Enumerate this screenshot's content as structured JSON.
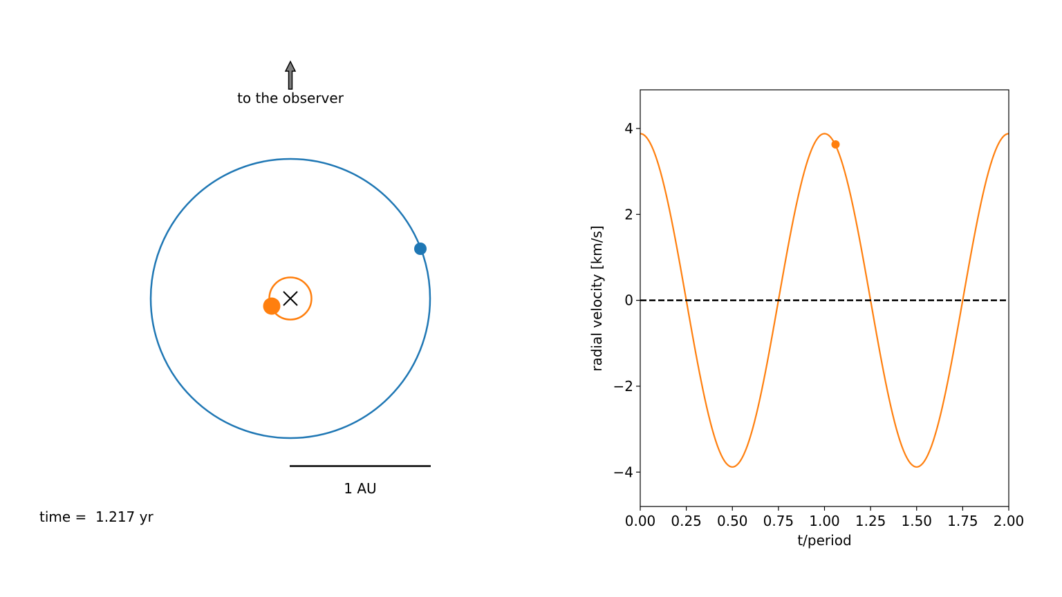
{
  "orbit_panel": {
    "observer_label": "to the observer",
    "scale_label": "1 AU",
    "scale_length_au": 1,
    "time_label": "time =  1.217 yr",
    "time_yr": 1.217,
    "planet_orbit_radius_au": 1.0,
    "star_orbit_radius_au": 0.15,
    "planet_position_au": [
      0.92,
      0.35
    ],
    "star_position_au": [
      -0.14,
      -0.05
    ],
    "planet_color": "#1f77b4",
    "star_color": "#ff7f0e",
    "barycenter_marker": "x-mark"
  },
  "chart_data": {
    "type": "line",
    "xlabel": "t/period",
    "ylabel": "radial velocity [km/s]",
    "xlim": [
      0.0,
      2.0
    ],
    "ylim": [
      -4.8,
      4.9
    ],
    "xticks": [
      0.0,
      0.25,
      0.5,
      0.75,
      1.0,
      1.25,
      1.5,
      1.75,
      2.0
    ],
    "xtick_labels": [
      "0.00",
      "0.25",
      "0.50",
      "0.75",
      "1.00",
      "1.25",
      "1.50",
      "1.75",
      "2.00"
    ],
    "yticks": [
      -4,
      -2,
      0,
      2,
      4
    ],
    "ytick_labels": [
      "−4",
      "−2",
      "0",
      "2",
      "4"
    ],
    "series": [
      {
        "amplitude_kms": 3.88,
        "curve": "cosine",
        "color": "#ff7f0e",
        "x": [
          0.0,
          0.125,
          0.25,
          0.375,
          0.5,
          0.625,
          0.75,
          0.875,
          1.0,
          1.125,
          1.25,
          1.375,
          1.5,
          1.625,
          1.75,
          1.875,
          2.0
        ],
        "y": [
          3.88,
          2.74,
          0.0,
          -2.74,
          -3.88,
          -2.74,
          0.0,
          2.74,
          3.88,
          2.74,
          0.0,
          -2.74,
          -3.88,
          -2.74,
          0.0,
          2.74,
          3.88
        ]
      }
    ],
    "current_point": {
      "x": 1.06,
      "y": 3.63,
      "color": "#ff7f0e"
    },
    "reference_line": {
      "y": 0,
      "style": "dashed",
      "color": "#000000"
    },
    "grid": false
  }
}
